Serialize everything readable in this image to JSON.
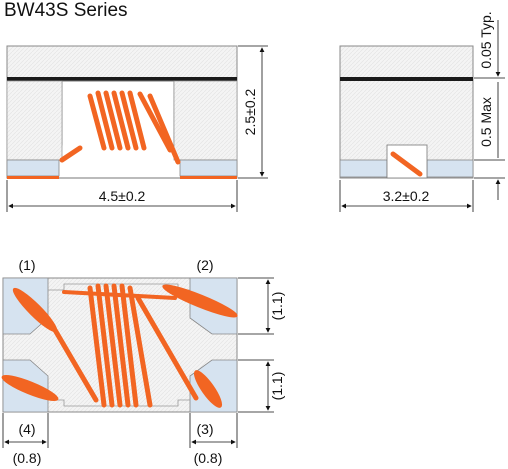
{
  "title": "BW43S Series",
  "front_view": {
    "width_label": "4.5±0.2",
    "height_label": "2.5±0.2"
  },
  "side_view": {
    "width_label": "3.2±0.2",
    "top_label": "0.05 Typ.",
    "bottom_label": "0.5 Max"
  },
  "bottom_view": {
    "terminal_labels": [
      "(1)",
      "(2)",
      "(3)",
      "(4)"
    ],
    "pitch_labels": [
      "(1.1)",
      "(1.1)"
    ],
    "pad_width_labels": [
      "(0.8)",
      "(0.8)"
    ]
  },
  "colors": {
    "wire": "#f26522",
    "body": "#f3f3f3",
    "pad": "#d6e3f0",
    "stripe": "#1a1a1a"
  }
}
